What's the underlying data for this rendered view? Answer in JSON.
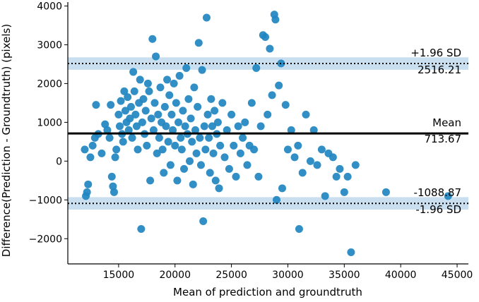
{
  "chart_data": {
    "type": "scatter",
    "xlabel": "Mean of prediction and groundtruth",
    "ylabel": "Difference(Prediction - Groundtruth) (pixels)",
    "xlim": [
      10500,
      46000
    ],
    "ylim": [
      -2650,
      4100
    ],
    "x_ticks": [
      15000,
      20000,
      25000,
      30000,
      35000,
      40000,
      45000
    ],
    "y_ticks": [
      -2000,
      -1000,
      0,
      1000,
      2000,
      3000,
      4000
    ],
    "mean": 713.67,
    "upper_loa": 2516.21,
    "lower_loa": -1088.87,
    "ci_half_width": 160,
    "annotations": {
      "upper_label": "+1.96 SD",
      "upper_value": "2516.21",
      "mean_label": "Mean",
      "mean_value": "713.67",
      "lower_value": "-1088.87",
      "lower_label": "-1.96 SD"
    },
    "colors": {
      "points": "#1f86c0",
      "band": "#c9dff0",
      "lines": "#000000"
    },
    "points": [
      [
        12000,
        300
      ],
      [
        12100,
        -900
      ],
      [
        12200,
        -800
      ],
      [
        12300,
        -600
      ],
      [
        12500,
        100
      ],
      [
        12700,
        400
      ],
      [
        12900,
        600
      ],
      [
        13000,
        1450
      ],
      [
        13200,
        700
      ],
      [
        13500,
        200
      ],
      [
        13800,
        950
      ],
      [
        14000,
        800
      ],
      [
        14200,
        600
      ],
      [
        14300,
        1450
      ],
      [
        14400,
        -400
      ],
      [
        14500,
        -650
      ],
      [
        14600,
        -800
      ],
      [
        14700,
        100
      ],
      [
        14800,
        300
      ],
      [
        15000,
        1200
      ],
      [
        15100,
        900
      ],
      [
        15200,
        1550
      ],
      [
        15300,
        700
      ],
      [
        15400,
        500
      ],
      [
        15500,
        1800
      ],
      [
        15600,
        1300
      ],
      [
        15700,
        1000
      ],
      [
        15800,
        1650
      ],
      [
        15900,
        800
      ],
      [
        16000,
        1100
      ],
      [
        16100,
        1400
      ],
      [
        16200,
        600
      ],
      [
        16300,
        2300
      ],
      [
        16400,
        1800
      ],
      [
        16500,
        1200
      ],
      [
        16600,
        900
      ],
      [
        16700,
        300
      ],
      [
        16800,
        1500
      ],
      [
        16900,
        2100
      ],
      [
        17000,
        -1750
      ],
      [
        17100,
        1000
      ],
      [
        17200,
        1600
      ],
      [
        17300,
        700
      ],
      [
        17400,
        1300
      ],
      [
        17500,
        400
      ],
      [
        17600,
        2000
      ],
      [
        17700,
        1800
      ],
      [
        17800,
        -500
      ],
      [
        17900,
        1100
      ],
      [
        18000,
        3150
      ],
      [
        18100,
        800
      ],
      [
        18200,
        1500
      ],
      [
        18300,
        2700
      ],
      [
        18400,
        200
      ],
      [
        18500,
        1200
      ],
      [
        18600,
        600
      ],
      [
        18700,
        1900
      ],
      [
        18800,
        1000
      ],
      [
        18900,
        300
      ],
      [
        19000,
        -300
      ],
      [
        19100,
        1400
      ],
      [
        19200,
        900
      ],
      [
        19300,
        2100
      ],
      [
        19400,
        500
      ],
      [
        19500,
        1700
      ],
      [
        19600,
        -100
      ],
      [
        19700,
        1200
      ],
      [
        19800,
        800
      ],
      [
        19900,
        2000
      ],
      [
        20000,
        400
      ],
      [
        20100,
        1500
      ],
      [
        20200,
        -500
      ],
      [
        20300,
        1000
      ],
      [
        20400,
        2200
      ],
      [
        20500,
        600
      ],
      [
        20600,
        300
      ],
      [
        20700,
        1300
      ],
      [
        20800,
        -200
      ],
      [
        20900,
        900
      ],
      [
        21000,
        2400
      ],
      [
        21100,
        700
      ],
      [
        21200,
        1600
      ],
      [
        21300,
        0
      ],
      [
        21400,
        1100
      ],
      [
        21500,
        500
      ],
      [
        21600,
        -600
      ],
      [
        21700,
        1900
      ],
      [
        21800,
        800
      ],
      [
        21900,
        200
      ],
      [
        22000,
        1400
      ],
      [
        22100,
        3050
      ],
      [
        22200,
        600
      ],
      [
        22300,
        -100
      ],
      [
        22400,
        2350
      ],
      [
        22500,
        -1550
      ],
      [
        22600,
        900
      ],
      [
        22700,
        300
      ],
      [
        22800,
        3700
      ],
      [
        22900,
        1200
      ],
      [
        23000,
        600
      ],
      [
        23100,
        -300
      ],
      [
        23200,
        1600
      ],
      [
        23300,
        900
      ],
      [
        23400,
        200
      ],
      [
        23500,
        1300
      ],
      [
        23600,
        -500
      ],
      [
        23700,
        700
      ],
      [
        23800,
        1000
      ],
      [
        23900,
        -700
      ],
      [
        24000,
        400
      ],
      [
        24200,
        1500
      ],
      [
        24400,
        100
      ],
      [
        24600,
        800
      ],
      [
        24800,
        -200
      ],
      [
        25000,
        1200
      ],
      [
        25200,
        400
      ],
      [
        25400,
        -400
      ],
      [
        25600,
        900
      ],
      [
        25800,
        200
      ],
      [
        26000,
        600
      ],
      [
        26200,
        1000
      ],
      [
        26400,
        -100
      ],
      [
        26600,
        400
      ],
      [
        26800,
        1500
      ],
      [
        27000,
        300
      ],
      [
        27200,
        2400
      ],
      [
        27400,
        -400
      ],
      [
        27600,
        900
      ],
      [
        27800,
        3250
      ],
      [
        28000,
        3200
      ],
      [
        28200,
        1200
      ],
      [
        28400,
        2900
      ],
      [
        28600,
        1700
      ],
      [
        28800,
        3780
      ],
      [
        28900,
        3650
      ],
      [
        29000,
        -1000
      ],
      [
        29200,
        1950
      ],
      [
        29400,
        2520
      ],
      [
        29500,
        -700
      ],
      [
        29800,
        1450
      ],
      [
        30000,
        300
      ],
      [
        30300,
        800
      ],
      [
        30600,
        100
      ],
      [
        30900,
        400
      ],
      [
        31000,
        -1750
      ],
      [
        31300,
        -300
      ],
      [
        31600,
        1200
      ],
      [
        32000,
        0
      ],
      [
        32300,
        800
      ],
      [
        32600,
        -100
      ],
      [
        33000,
        300
      ],
      [
        33300,
        -900
      ],
      [
        33600,
        200
      ],
      [
        34000,
        100
      ],
      [
        34300,
        -400
      ],
      [
        34600,
        -200
      ],
      [
        35000,
        -800
      ],
      [
        35300,
        -400
      ],
      [
        35600,
        -2350
      ],
      [
        36000,
        -100
      ],
      [
        38700,
        -800
      ],
      [
        44200,
        -900
      ]
    ]
  }
}
